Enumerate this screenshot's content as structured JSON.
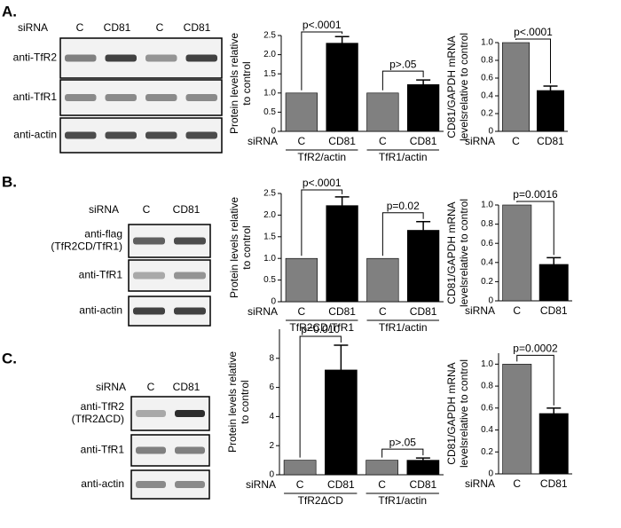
{
  "panels": [
    {
      "label": "A.",
      "siRNA": "siRNA",
      "lanes": [
        "C",
        "CD81",
        "C",
        "CD81"
      ],
      "blots": [
        [
          "anti-TfR2"
        ],
        [
          "anti-TfR1"
        ],
        [
          "anti-actin"
        ]
      ]
    },
    {
      "label": "B.",
      "siRNA": "siRNA",
      "lanes": [
        "C",
        "CD81"
      ],
      "blots": [
        [
          "anti-flag",
          "(TfR2CD/TfR1)"
        ],
        [
          "anti-TfR1"
        ],
        [
          "anti-actin"
        ]
      ]
    },
    {
      "label": "C.",
      "siRNA": "siRNA",
      "lanes": [
        "C",
        "CD81"
      ],
      "blots": [
        [
          "anti-TfR2",
          "(TfR2ΔCD)"
        ],
        [
          "anti-TfR1"
        ],
        [
          "anti-actin"
        ]
      ]
    }
  ],
  "chart_data": [
    {
      "type": "bar",
      "ylabel": [
        "Protein levels relative",
        "to control"
      ],
      "xlabel": "siRNA",
      "categories": [
        "C",
        "CD81",
        "C",
        "CD81"
      ],
      "groups": [
        "TfR2/actin",
        "TfR1/actin"
      ],
      "values": [
        1,
        2.3,
        1,
        1.22
      ],
      "errors": [
        0,
        0.17,
        0,
        0.12
      ],
      "colors": [
        "#808080",
        "#000000",
        "#808080",
        "#000000"
      ],
      "ylim": [
        0,
        2.5
      ],
      "yticks": [
        0,
        0.5,
        {
          "value": 1,
          "label": "1.0"
        },
        1.5,
        {
          "value": 2,
          "label": "2.0"
        },
        2.5
      ],
      "annotations": [
        "p<.0001",
        "p>.05"
      ]
    },
    {
      "type": "bar",
      "ylabel": [
        "CD81/GAPDH mRNA",
        "levelsrelative to control"
      ],
      "xlabel": "siRNA",
      "categories": [
        "C",
        "CD81"
      ],
      "values": [
        1,
        0.46
      ],
      "errors": [
        0,
        0.05
      ],
      "colors": [
        "#808080",
        "#000000"
      ],
      "ylim": [
        0,
        1
      ],
      "yticks": [
        0,
        0.2,
        0.4,
        0.6,
        0.8,
        {
          "value": 1,
          "label": "1.0"
        }
      ],
      "annotations": [
        "p<.0001"
      ]
    },
    {
      "type": "bar",
      "ylabel": [
        "Protein levels relative",
        "to control"
      ],
      "xlabel": "siRNA",
      "categories": [
        "C",
        "CD81",
        "C",
        "CD81"
      ],
      "groups": [
        "TfR2CD/TfR1",
        "TfR1/actin"
      ],
      "values": [
        1,
        2.22,
        1,
        1.65
      ],
      "errors": [
        0,
        0.2,
        0,
        0.2
      ],
      "colors": [
        "#808080",
        "#000000",
        "#808080",
        "#000000"
      ],
      "ylim": [
        0,
        2.5
      ],
      "yticks": [
        0,
        0.5,
        {
          "value": 1,
          "label": "1.0"
        },
        1.5,
        {
          "value": 2,
          "label": "2.0"
        },
        2.5
      ],
      "annotations": [
        "p<.0001",
        "p=0.02"
      ]
    },
    {
      "type": "bar",
      "ylabel": [
        "CD81/GAPDH mRNA",
        "levelsrelative to control"
      ],
      "xlabel": "siRNA",
      "categories": [
        "C",
        "CD81"
      ],
      "values": [
        1,
        0.38
      ],
      "errors": [
        0,
        0.07
      ],
      "colors": [
        "#808080",
        "#000000"
      ],
      "ylim": [
        0,
        1
      ],
      "yticks": [
        0,
        0.2,
        0.4,
        0.6,
        0.8,
        {
          "value": 1,
          "label": "1.0"
        }
      ],
      "annotations": [
        "p=0.0016"
      ]
    },
    {
      "type": "bar",
      "ylabel": [
        "Protein levels relative",
        "to control"
      ],
      "xlabel": "siRNA",
      "categories": [
        "C",
        "CD81",
        "C",
        "CD81"
      ],
      "groups": [
        "TfR2ΔCD",
        "TfR1/actin"
      ],
      "values": [
        1,
        7.2,
        1,
        1
      ],
      "errors": [
        0,
        1.7,
        0,
        0.15
      ],
      "colors": [
        "#808080",
        "#000000",
        "#808080",
        "#000000"
      ],
      "ylim": [
        0,
        10
      ],
      "yticks": [
        0,
        2,
        4,
        6,
        8
      ],
      "annotations": [
        "p=0.010",
        "p>.05"
      ]
    },
    {
      "type": "bar",
      "ylabel": [
        "CD81/GAPDH mRNA",
        "levelsrelative to control"
      ],
      "xlabel": "siRNA",
      "categories": [
        "C",
        "CD81"
      ],
      "values": [
        1,
        0.55
      ],
      "errors": [
        0,
        0.05
      ],
      "colors": [
        "#808080",
        "#000000"
      ],
      "ylim": [
        0,
        1.1
      ],
      "yticks": [
        0,
        0.2,
        0.4,
        0.6,
        0.8,
        {
          "value": 1,
          "label": "1.0"
        }
      ],
      "annotations": [
        "p=0.0002"
      ]
    }
  ]
}
